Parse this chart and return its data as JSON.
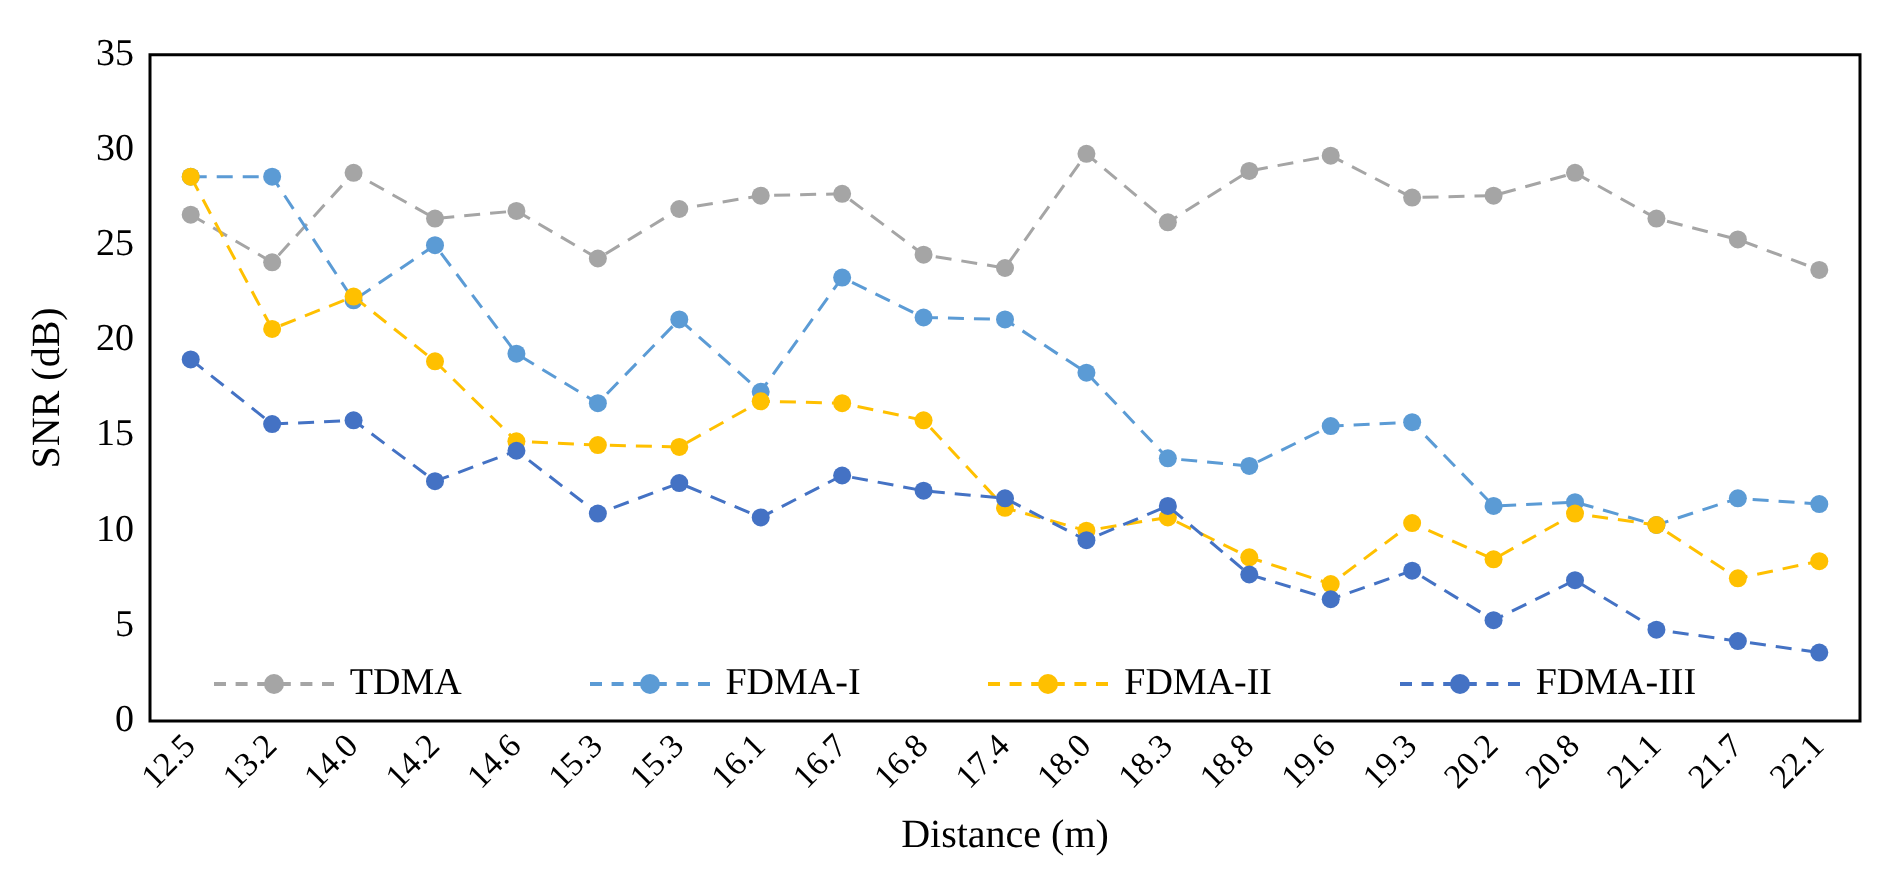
{
  "chart_data": {
    "type": "line",
    "xlabel": "Distance (m)",
    "ylabel": "SNR (dB)",
    "categories": [
      "12.5",
      "13.2",
      "14.0",
      "14.2",
      "14.6",
      "15.3",
      "15.3",
      "16.1",
      "16.7",
      "16.8",
      "17.4",
      "18.0",
      "18.3",
      "18.8",
      "19.6",
      "19.3",
      "20.2",
      "20.8",
      "21.1",
      "21.7",
      "22.1"
    ],
    "series": [
      {
        "name": "TDMA",
        "color": "#a5a5a5",
        "values": [
          26.6,
          24.1,
          28.8,
          26.4,
          26.8,
          24.3,
          26.9,
          27.6,
          27.7,
          24.5,
          23.8,
          29.8,
          26.2,
          28.9,
          29.7,
          27.5,
          27.6,
          28.8,
          26.4,
          25.3,
          23.7
        ]
      },
      {
        "name": "FDMA-I",
        "color": "#5b9bd5",
        "values": [
          28.6,
          28.6,
          22.1,
          25.0,
          19.3,
          16.7,
          21.1,
          17.3,
          23.3,
          21.2,
          21.1,
          18.3,
          13.8,
          13.4,
          15.5,
          15.7,
          11.3,
          11.5,
          10.3,
          11.7,
          11.4
        ]
      },
      {
        "name": "FDMA-II",
        "color": "#ffc000",
        "values": [
          28.6,
          20.6,
          22.3,
          18.9,
          14.7,
          14.5,
          14.4,
          16.8,
          16.7,
          15.8,
          11.2,
          10.0,
          10.7,
          8.6,
          7.2,
          10.4,
          8.5,
          10.9,
          10.3,
          7.5,
          8.4
        ]
      },
      {
        "name": "FDMA-III",
        "color": "#4472c4",
        "values": [
          19.0,
          15.6,
          15.8,
          12.6,
          14.2,
          10.9,
          12.5,
          10.7,
          12.9,
          12.1,
          11.7,
          9.5,
          11.3,
          7.7,
          6.4,
          7.9,
          5.3,
          7.4,
          4.8,
          4.2,
          3.6
        ]
      }
    ],
    "ylim": [
      0,
      35
    ],
    "yticks": [
      0,
      5,
      10,
      15,
      20,
      25,
      30,
      35
    ],
    "grid": false,
    "legend": "bottom",
    "marker": "circle",
    "line_style": "dashed"
  }
}
